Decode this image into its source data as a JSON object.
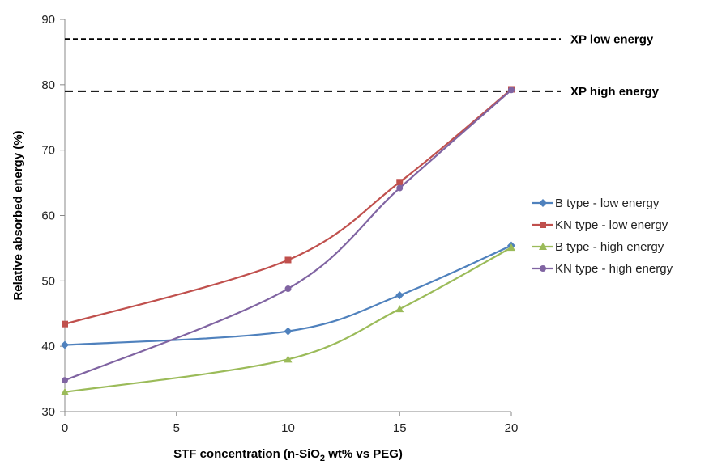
{
  "chart_data": {
    "type": "line",
    "xlabel_parts": [
      "STF concentration (n-SiO",
      "2",
      " wt% vs PEG)"
    ],
    "ylabel": "Relative absorbed energy (%)",
    "xlim": [
      0,
      20
    ],
    "ylim": [
      30,
      90
    ],
    "xticks": [
      0,
      5,
      10,
      15,
      20
    ],
    "yticks": [
      30,
      40,
      50,
      60,
      70,
      80,
      90
    ],
    "grid": false,
    "legend_position": "right",
    "series": [
      {
        "name": "B type - low energy",
        "color": "#4f81bd",
        "marker": "diamond",
        "x": [
          0,
          10,
          15,
          20
        ],
        "y": [
          40.2,
          42.3,
          47.8,
          55.4
        ]
      },
      {
        "name": "KN type - low energy",
        "color": "#c0504d",
        "marker": "square",
        "x": [
          0,
          10,
          15,
          20
        ],
        "y": [
          43.4,
          53.2,
          65.1,
          79.3
        ]
      },
      {
        "name": "B type - high energy",
        "color": "#9bbb59",
        "marker": "triangle",
        "x": [
          0,
          10,
          15,
          20
        ],
        "y": [
          33.0,
          38.0,
          45.7,
          55.1
        ]
      },
      {
        "name": "KN type - high energy",
        "color": "#8064a2",
        "marker": "circle",
        "x": [
          0,
          10,
          15,
          20
        ],
        "y": [
          34.8,
          48.8,
          64.2,
          79.2
        ]
      }
    ],
    "reference_lines": [
      {
        "label": "XP  low energy",
        "y": 87,
        "style": "dashed"
      },
      {
        "label": "XP  high energy",
        "y": 79,
        "style": "dashed"
      }
    ]
  }
}
